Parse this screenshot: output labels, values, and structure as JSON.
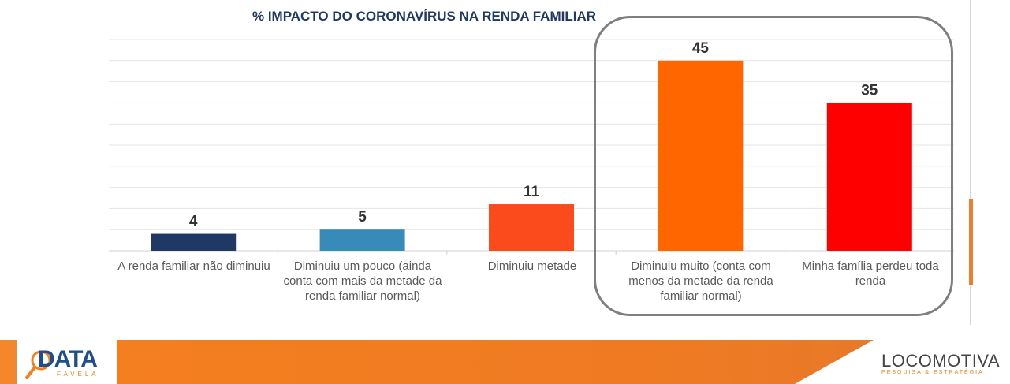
{
  "chart_data": {
    "type": "bar",
    "title": "% IMPACTO DO CORONAVÍRUS NA RENDA FAMILIAR",
    "categories": [
      "A renda familiar não diminuiu",
      "Diminuiu um pouco (ainda conta com mais da metade da renda familiar normal)",
      "Diminuiu metade",
      "Diminuiu muito (conta com menos da metade da renda familiar normal)",
      "Minha família perdeu toda renda"
    ],
    "values": [
      4,
      5,
      11,
      45,
      35
    ],
    "colors": [
      "#1f3864",
      "#378bb8",
      "#fb4a1b",
      "#ff6600",
      "#ff0000"
    ],
    "ylim": [
      0,
      50
    ],
    "grid": true,
    "highlighted_categories": [
      3,
      4
    ]
  },
  "footer": {
    "left_logo_main": "DATA",
    "left_logo_sub": "FAVELA",
    "right_logo_main": "LOCOMOTIVA",
    "right_logo_sub": "PESQUISA & ESTRATÉGIA"
  }
}
